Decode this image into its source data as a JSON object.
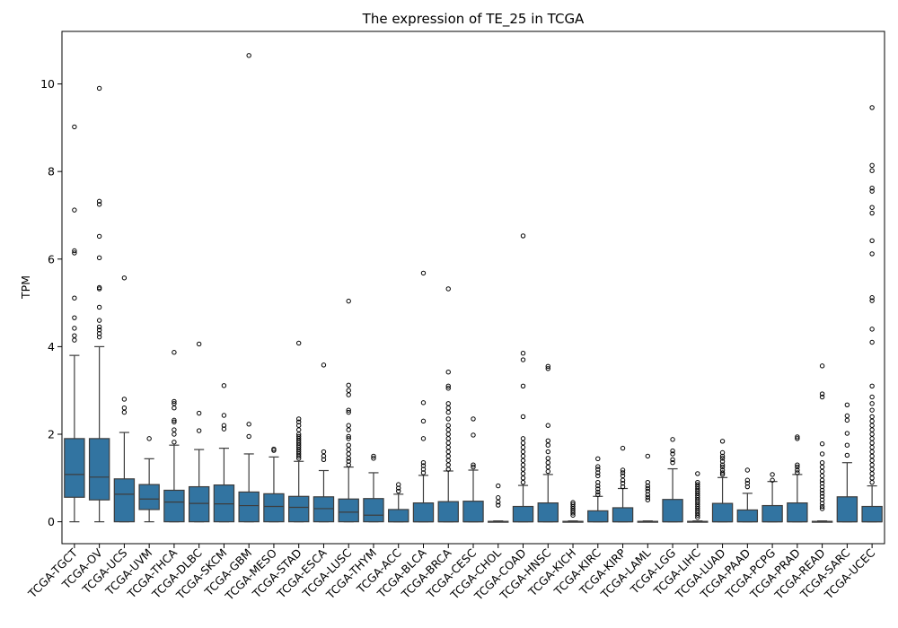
{
  "chart_data": {
    "type": "box",
    "title": "The expression of TE_25 in TCGA",
    "xlabel": "",
    "ylabel": "TPM",
    "ylim": [
      -0.5,
      11.2
    ],
    "yticks": [
      0,
      2,
      4,
      6,
      8,
      10
    ],
    "grid": false,
    "legend": "none",
    "box_color": "#3274a1",
    "categories": [
      "TCGA-TGCT",
      "TCGA-OV",
      "TCGA-UCS",
      "TCGA-UVM",
      "TCGA-THCA",
      "TCGA-DLBC",
      "TCGA-SKCM",
      "TCGA-GBM",
      "TCGA-MESO",
      "TCGA-STAD",
      "TCGA-ESCA",
      "TCGA-LUSC",
      "TCGA-THYM",
      "TCGA-ACC",
      "TCGA-BLCA",
      "TCGA-BRCA",
      "TCGA-CESC",
      "TCGA-CHOL",
      "TCGA-COAD",
      "TCGA-HNSC",
      "TCGA-KICH",
      "TCGA-KIRC",
      "TCGA-KIRP",
      "TCGA-LAML",
      "TCGA-LGG",
      "TCGA-LIHC",
      "TCGA-LUAD",
      "TCGA-PAAD",
      "TCGA-PCPG",
      "TCGA-PRAD",
      "TCGA-READ",
      "TCGA-SARC",
      "TCGA-UCEC"
    ],
    "boxes": [
      {
        "whislo": 0,
        "q1": 0.56,
        "median": 1.08,
        "q3": 1.9,
        "whishi": 3.8,
        "fliers": [
          4.15,
          4.25,
          4.42,
          4.66,
          5.11,
          6.14,
          6.19,
          7.12,
          9.02
        ]
      },
      {
        "whislo": 0,
        "q1": 0.5,
        "median": 1.02,
        "q3": 1.9,
        "whishi": 4.0,
        "fliers": [
          4.22,
          4.3,
          4.38,
          4.45,
          4.6,
          4.9,
          5.32,
          5.35,
          6.03,
          6.52,
          7.25,
          7.32,
          9.9
        ]
      },
      {
        "whislo": 0,
        "q1": 0,
        "median": 0.63,
        "q3": 0.98,
        "whishi": 2.04,
        "fliers": [
          2.5,
          2.6,
          2.8,
          5.57
        ]
      },
      {
        "whislo": 0,
        "q1": 0.28,
        "median": 0.52,
        "q3": 0.85,
        "whishi": 1.44,
        "fliers": [
          1.9
        ]
      },
      {
        "whislo": 0,
        "q1": 0,
        "median": 0.45,
        "q3": 0.72,
        "whishi": 1.75,
        "fliers": [
          1.82,
          2.0,
          2.1,
          2.28,
          2.32,
          2.6,
          2.7,
          2.75,
          3.87
        ]
      },
      {
        "whislo": 0,
        "q1": 0,
        "median": 0.42,
        "q3": 0.8,
        "whishi": 1.65,
        "fliers": [
          2.08,
          2.48,
          4.06
        ]
      },
      {
        "whislo": 0,
        "q1": 0,
        "median": 0.41,
        "q3": 0.84,
        "whishi": 1.68,
        "fliers": [
          2.12,
          2.2,
          2.43,
          3.11
        ]
      },
      {
        "whislo": 0,
        "q1": 0,
        "median": 0.37,
        "q3": 0.68,
        "whishi": 1.55,
        "fliers": [
          1.95,
          2.23,
          10.65
        ]
      },
      {
        "whislo": 0,
        "q1": 0,
        "median": 0.35,
        "q3": 0.64,
        "whishi": 1.48,
        "fliers": [
          1.63,
          1.66
        ]
      },
      {
        "whislo": 0,
        "q1": 0,
        "median": 0.33,
        "q3": 0.58,
        "whishi": 1.38,
        "fliers": [
          1.45,
          1.5,
          1.55,
          1.6,
          1.65,
          1.7,
          1.75,
          1.8,
          1.85,
          1.9,
          1.95,
          2.0,
          2.1,
          2.2,
          2.28,
          2.35,
          4.08
        ]
      },
      {
        "whislo": 0,
        "q1": 0,
        "median": 0.3,
        "q3": 0.57,
        "whishi": 1.17,
        "fliers": [
          1.42,
          1.5,
          1.6,
          3.58
        ]
      },
      {
        "whislo": 0,
        "q1": 0,
        "median": 0.22,
        "q3": 0.52,
        "whishi": 1.25,
        "fliers": [
          1.3,
          1.38,
          1.45,
          1.55,
          1.65,
          1.75,
          1.9,
          1.95,
          2.1,
          2.2,
          2.5,
          2.55,
          2.9,
          3.0,
          3.12,
          5.04
        ]
      },
      {
        "whislo": 0,
        "q1": 0,
        "median": 0.15,
        "q3": 0.53,
        "whishi": 1.12,
        "fliers": [
          1.45,
          1.5
        ]
      },
      {
        "whislo": 0,
        "q1": 0,
        "median": 0,
        "q3": 0.28,
        "whishi": 0.63,
        "fliers": [
          0.7,
          0.77,
          0.85
        ]
      },
      {
        "whislo": 0,
        "q1": 0,
        "median": 0,
        "q3": 0.43,
        "whishi": 1.06,
        "fliers": [
          1.12,
          1.2,
          1.28,
          1.35,
          1.9,
          2.3,
          2.72,
          5.68
        ]
      },
      {
        "whislo": 0,
        "q1": 0,
        "median": 0,
        "q3": 0.46,
        "whishi": 1.16,
        "fliers": [
          1.2,
          1.3,
          1.4,
          1.5,
          1.6,
          1.7,
          1.8,
          1.9,
          2.0,
          2.1,
          2.2,
          2.35,
          2.5,
          2.6,
          2.7,
          3.05,
          3.1,
          3.42,
          5.32
        ]
      },
      {
        "whislo": 0,
        "q1": 0,
        "median": 0,
        "q3": 0.47,
        "whishi": 1.18,
        "fliers": [
          1.25,
          1.3,
          1.98,
          2.35
        ]
      },
      {
        "whislo": 0,
        "q1": 0,
        "median": 0,
        "q3": 0.01,
        "whishi": 0.02,
        "fliers": [
          0.38,
          0.45,
          0.55,
          0.82
        ]
      },
      {
        "whislo": 0,
        "q1": 0,
        "median": 0,
        "q3": 0.35,
        "whishi": 0.83,
        "fliers": [
          0.9,
          1.0,
          1.1,
          1.2,
          1.3,
          1.4,
          1.5,
          1.6,
          1.7,
          1.8,
          1.9,
          2.4,
          3.1,
          3.7,
          3.85,
          6.53
        ]
      },
      {
        "whislo": 0,
        "q1": 0,
        "median": 0,
        "q3": 0.43,
        "whishi": 1.08,
        "fliers": [
          1.15,
          1.25,
          1.35,
          1.45,
          1.6,
          1.75,
          1.85,
          2.2,
          3.5,
          3.55
        ]
      },
      {
        "whislo": 0,
        "q1": 0,
        "median": 0,
        "q3": 0.01,
        "whishi": 0.02,
        "fliers": [
          0.15,
          0.2,
          0.25,
          0.3,
          0.35,
          0.4,
          0.44
        ]
      },
      {
        "whislo": 0,
        "q1": 0,
        "median": 0,
        "q3": 0.25,
        "whishi": 0.58,
        "fliers": [
          0.62,
          0.68,
          0.75,
          0.82,
          0.9,
          1.05,
          1.12,
          1.2,
          1.26,
          1.44
        ]
      },
      {
        "whislo": 0,
        "q1": 0,
        "median": 0,
        "q3": 0.32,
        "whishi": 0.76,
        "fliers": [
          0.8,
          0.88,
          0.95,
          1.05,
          1.12,
          1.18,
          1.68
        ]
      },
      {
        "whislo": 0,
        "q1": 0,
        "median": 0,
        "q3": 0.01,
        "whishi": 0.02,
        "fliers": [
          0.5,
          0.56,
          0.62,
          0.7,
          0.76,
          0.82,
          0.9,
          1.5
        ]
      },
      {
        "whislo": 0,
        "q1": 0,
        "median": 0,
        "q3": 0.51,
        "whishi": 1.21,
        "fliers": [
          1.35,
          1.42,
          1.55,
          1.62,
          1.88
        ]
      },
      {
        "whislo": 0,
        "q1": 0,
        "median": 0,
        "q3": 0.01,
        "whishi": 0.02,
        "fliers": [
          0.1,
          0.15,
          0.2,
          0.25,
          0.3,
          0.35,
          0.4,
          0.45,
          0.5,
          0.55,
          0.6,
          0.65,
          0.7,
          0.75,
          0.8,
          0.85,
          0.9,
          1.1
        ]
      },
      {
        "whislo": 0,
        "q1": 0,
        "median": 0,
        "q3": 0.42,
        "whishi": 1.01,
        "fliers": [
          1.08,
          1.12,
          1.18,
          1.25,
          1.3,
          1.38,
          1.45,
          1.5,
          1.58,
          1.84
        ]
      },
      {
        "whislo": 0,
        "q1": 0,
        "median": 0,
        "q3": 0.27,
        "whishi": 0.65,
        "fliers": [
          0.8,
          0.88,
          0.95,
          1.18
        ]
      },
      {
        "whislo": 0,
        "q1": 0,
        "median": 0,
        "q3": 0.37,
        "whishi": 0.92,
        "fliers": [
          0.95,
          1.08
        ]
      },
      {
        "whislo": 0,
        "q1": 0,
        "median": 0,
        "q3": 0.43,
        "whishi": 1.08,
        "fliers": [
          1.12,
          1.18,
          1.25,
          1.3,
          1.9,
          1.94
        ]
      },
      {
        "whislo": 0,
        "q1": 0,
        "median": 0,
        "q3": 0.01,
        "whishi": 0.02,
        "fliers": [
          0.3,
          0.35,
          0.42,
          0.5,
          0.58,
          0.65,
          0.72,
          0.8,
          0.88,
          0.95,
          1.05,
          1.15,
          1.25,
          1.35,
          1.55,
          1.78,
          2.85,
          2.92,
          3.56
        ]
      },
      {
        "whislo": 0,
        "q1": 0,
        "median": 0,
        "q3": 0.57,
        "whishi": 1.35,
        "fliers": [
          1.52,
          1.75,
          2.02,
          2.32,
          2.42,
          2.67
        ]
      },
      {
        "whislo": 0,
        "q1": 0,
        "median": 0,
        "q3": 0.35,
        "whishi": 0.82,
        "fliers": [
          0.9,
          1.0,
          1.1,
          1.2,
          1.3,
          1.4,
          1.5,
          1.6,
          1.7,
          1.8,
          1.9,
          2.0,
          2.1,
          2.2,
          2.3,
          2.4,
          2.55,
          2.7,
          2.85,
          3.1,
          4.1,
          4.4,
          5.05,
          5.12,
          6.12,
          6.42,
          7.05,
          7.18,
          7.55,
          7.62,
          8.02,
          8.14,
          9.46
        ]
      }
    ]
  }
}
